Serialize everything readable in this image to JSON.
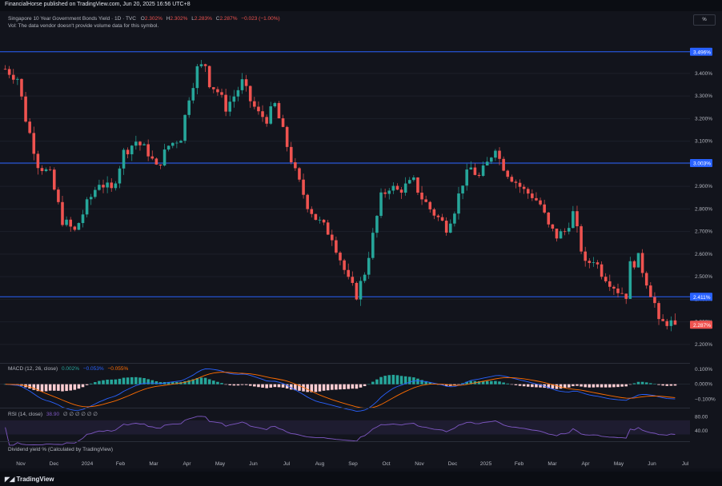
{
  "header": {
    "published": "FinancialHorse published on TradingView.com, Jun 20, 2025 16:56 UTC+8"
  },
  "legend": {
    "symbol": "Singapore 10 Year Government Bonds Yield · 1D · TVC",
    "o_label": "O",
    "o": "2.302%",
    "h_label": "H",
    "h": "2.302%",
    "l_label": "L",
    "l": "2.283%",
    "c_label": "C",
    "c": "2.287%",
    "chg": "−0.023 (−1.00%)",
    "vol_note": "Vol: The data vendor doesn't provide volume data for this symbol."
  },
  "pct_button": "%",
  "macd_legend": {
    "label": "MACD (12, 26, close)",
    "v1": "0.002%",
    "v2": "−0.053%",
    "v3": "−0.055%"
  },
  "rsi_legend": {
    "label": "RSI (14, close)",
    "v1": "38.90",
    "rest": "∅ ∅ ∅ ∅ ∅ ∅"
  },
  "div_legend": {
    "label": "Dividend yield % (Calculated by TradingView)"
  },
  "footer": {
    "logo": "TradingView"
  },
  "colors": {
    "up": "#26a69a",
    "down": "#ef5350",
    "hline": "#2962ff",
    "macd": "#2962ff",
    "signal": "#ff6d00",
    "rsi": "#7e57c2",
    "bg": "#12141c"
  },
  "chart_data": [
    {
      "type": "candlestick",
      "title": "Singapore 10 Year Government Bonds Yield",
      "x_tick_labels": [
        "Nov",
        "Dec",
        "2024",
        "Feb",
        "Mar",
        "Apr",
        "May",
        "Jun",
        "Jul",
        "Aug",
        "Sep",
        "Oct",
        "Nov",
        "Dec",
        "2025",
        "Feb",
        "Mar",
        "Apr",
        "May",
        "Jun",
        "Jul"
      ],
      "y_ticks": [
        "3.400%",
        "3.300%",
        "3.200%",
        "3.100%",
        "3.000%",
        "2.900%",
        "2.800%",
        "2.700%",
        "2.600%",
        "2.500%",
        "2.400%",
        "2.300%",
        "2.200%"
      ],
      "ylim": [
        2.15,
        3.52
      ],
      "horizontal_lines": [
        {
          "value": 3.496,
          "label": "3.496%"
        },
        {
          "value": 3.003,
          "label": "3.003%"
        },
        {
          "value": 2.411,
          "label": "2.411%"
        }
      ],
      "last_price": {
        "value": 2.287,
        "label": "2.287%"
      },
      "close_path": [
        [
          0,
          3.42
        ],
        [
          3,
          3.38
        ],
        [
          5,
          3.2
        ],
        [
          8,
          3.0
        ],
        [
          11,
          2.95
        ],
        [
          14,
          2.75
        ],
        [
          17,
          2.7
        ],
        [
          20,
          2.82
        ],
        [
          23,
          2.92
        ],
        [
          26,
          2.88
        ],
        [
          29,
          3.05
        ],
        [
          32,
          3.1
        ],
        [
          35,
          3.05
        ],
        [
          37,
          2.98
        ],
        [
          40,
          3.08
        ],
        [
          43,
          3.12
        ],
        [
          45,
          3.3
        ],
        [
          47,
          3.42
        ],
        [
          49,
          3.44
        ],
        [
          50,
          3.36
        ],
        [
          52,
          3.32
        ],
        [
          54,
          3.25
        ],
        [
          56,
          3.3
        ],
        [
          58,
          3.36
        ],
        [
          60,
          3.28
        ],
        [
          62,
          3.22
        ],
        [
          64,
          3.2
        ],
        [
          66,
          3.26
        ],
        [
          67,
          3.2
        ],
        [
          69,
          3.08
        ],
        [
          71,
          2.96
        ],
        [
          74,
          2.82
        ],
        [
          76,
          2.76
        ],
        [
          78,
          2.72
        ],
        [
          80,
          2.68
        ],
        [
          82,
          2.58
        ],
        [
          84,
          2.48
        ],
        [
          86,
          2.42
        ],
        [
          88,
          2.52
        ],
        [
          90,
          2.68
        ],
        [
          92,
          2.85
        ],
        [
          94,
          2.9
        ],
        [
          96,
          2.88
        ],
        [
          98,
          2.9
        ],
        [
          100,
          2.92
        ],
        [
          102,
          2.85
        ],
        [
          104,
          2.8
        ],
        [
          106,
          2.76
        ],
        [
          108,
          2.72
        ],
        [
          110,
          2.8
        ],
        [
          112,
          2.92
        ],
        [
          114,
          2.98
        ],
        [
          116,
          2.94
        ],
        [
          118,
          3.0
        ],
        [
          120,
          3.08
        ],
        [
          121,
          3.02
        ],
        [
          123,
          2.96
        ],
        [
          125,
          2.92
        ],
        [
          127,
          2.88
        ],
        [
          129,
          2.86
        ],
        [
          131,
          2.82
        ],
        [
          133,
          2.72
        ],
        [
          135,
          2.68
        ],
        [
          137,
          2.7
        ],
        [
          139,
          2.78
        ],
        [
          140,
          2.7
        ],
        [
          142,
          2.55
        ],
        [
          144,
          2.58
        ],
        [
          146,
          2.52
        ],
        [
          148,
          2.48
        ],
        [
          150,
          2.44
        ],
        [
          152,
          2.42
        ],
        [
          153,
          2.55
        ],
        [
          155,
          2.58
        ],
        [
          157,
          2.48
        ],
        [
          159,
          2.38
        ],
        [
          160,
          2.29
        ],
        [
          162,
          2.3
        ],
        [
          164,
          2.287
        ]
      ],
      "macd_ylim": [
        -0.13,
        0.1
      ],
      "macd_ticks": [
        "0.100%",
        "0.000%",
        "−0.100%"
      ],
      "rsi_ticks": [
        "80.00",
        "40.00"
      ]
    }
  ]
}
